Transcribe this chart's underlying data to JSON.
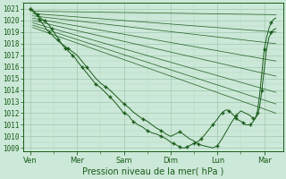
{
  "xlabel": "Pression niveau de la mer( hPa )",
  "yticks": [
    1009,
    1010,
    1011,
    1012,
    1013,
    1014,
    1015,
    1016,
    1017,
    1018,
    1019,
    1020,
    1021
  ],
  "xtick_labels": [
    "Ven",
    "Mer",
    "Sam",
    "Dim",
    "Lun",
    "Mar"
  ],
  "xtick_positions": [
    0,
    1,
    2,
    3,
    4,
    5
  ],
  "ylim": [
    1008.7,
    1021.5
  ],
  "xlim": [
    -0.15,
    5.4
  ],
  "bg_color": "#cce8d8",
  "grid_major_color": "#a0c8b0",
  "grid_minor_color": "#b8d8c4",
  "line_color": "#1a5c1a",
  "figsize": [
    3.2,
    2.0
  ],
  "dpi": 100,
  "fan_starts": [
    [
      0.05,
      1020.8
    ],
    [
      0.05,
      1020.6
    ],
    [
      0.05,
      1020.4
    ],
    [
      0.05,
      1020.2
    ],
    [
      0.05,
      1020.0
    ],
    [
      0.05,
      1019.8
    ],
    [
      0.05,
      1019.6
    ],
    [
      0.05,
      1019.4
    ]
  ],
  "fan_ends": [
    [
      5.25,
      1020.5
    ],
    [
      5.25,
      1019.0
    ],
    [
      5.25,
      1018.0
    ],
    [
      5.25,
      1016.5
    ],
    [
      5.25,
      1015.2
    ],
    [
      5.25,
      1013.8
    ],
    [
      5.25,
      1012.8
    ],
    [
      5.25,
      1012.0
    ]
  ],
  "obs_x": [
    0.0,
    0.05,
    0.1,
    0.15,
    0.2,
    0.25,
    0.3,
    0.35,
    0.4,
    0.45,
    0.5,
    0.55,
    0.6,
    0.65,
    0.7,
    0.75,
    0.8,
    0.85,
    0.9,
    0.95,
    1.0,
    1.1,
    1.2,
    1.3,
    1.4,
    1.5,
    1.6,
    1.7,
    1.8,
    1.9,
    2.0,
    2.1,
    2.15,
    2.2,
    2.3,
    2.4,
    2.5,
    2.6,
    2.7,
    2.8,
    2.9,
    3.0,
    3.05,
    3.1,
    3.15,
    3.2,
    3.25,
    3.3,
    3.35,
    3.4,
    3.45,
    3.5,
    3.55,
    3.6,
    3.65,
    3.7,
    3.8,
    3.9,
    4.0,
    4.05,
    4.1,
    4.15,
    4.2,
    4.25,
    4.3,
    4.35,
    4.4,
    4.45,
    4.5,
    4.55,
    4.6,
    4.65,
    4.7,
    4.75,
    4.8,
    4.85,
    4.9,
    4.95,
    5.0,
    5.05,
    5.1,
    5.15,
    5.2,
    5.25
  ],
  "obs_y": [
    1021.0,
    1020.9,
    1020.7,
    1020.5,
    1020.3,
    1020.1,
    1020.0,
    1019.8,
    1019.6,
    1019.3,
    1019.0,
    1018.7,
    1018.4,
    1018.1,
    1017.8,
    1017.6,
    1017.4,
    1017.2,
    1017.0,
    1016.8,
    1016.5,
    1016.0,
    1015.5,
    1015.0,
    1014.5,
    1014.2,
    1013.8,
    1013.4,
    1013.0,
    1012.5,
    1012.0,
    1011.8,
    1011.5,
    1011.3,
    1011.0,
    1010.8,
    1010.5,
    1010.3,
    1010.2,
    1010.0,
    1009.8,
    1009.5,
    1009.4,
    1009.3,
    1009.2,
    1009.1,
    1009.0,
    1009.0,
    1009.1,
    1009.2,
    1009.3,
    1009.4,
    1009.5,
    1009.6,
    1009.8,
    1010.0,
    1010.5,
    1011.0,
    1011.5,
    1011.8,
    1012.0,
    1012.2,
    1012.3,
    1012.2,
    1012.0,
    1011.8,
    1011.6,
    1011.4,
    1011.3,
    1011.2,
    1011.0,
    1011.0,
    1011.0,
    1011.2,
    1011.5,
    1012.0,
    1013.5,
    1015.5,
    1017.5,
    1018.5,
    1019.3,
    1019.8,
    1020.1,
    1020.2
  ],
  "obs2_x": [
    0.0,
    0.05,
    0.1,
    0.15,
    0.2,
    0.25,
    0.3,
    0.35,
    0.4,
    0.5,
    0.6,
    0.7,
    0.8,
    0.9,
    1.0,
    1.1,
    1.2,
    1.3,
    1.4,
    1.5,
    1.6,
    1.7,
    1.8,
    1.9,
    2.0,
    2.1,
    2.2,
    2.3,
    2.4,
    2.5,
    2.6,
    2.7,
    2.8,
    2.9,
    3.0,
    3.1,
    3.2,
    3.3,
    3.4,
    3.5,
    3.6,
    3.7,
    3.8,
    3.9,
    4.0,
    4.1,
    4.2,
    4.3,
    4.4,
    4.5,
    4.6,
    4.7,
    4.75,
    4.8,
    4.85,
    4.9,
    4.95,
    5.0,
    5.05,
    5.1,
    5.15,
    5.2,
    5.25
  ],
  "obs2_y": [
    1021.0,
    1020.8,
    1020.6,
    1020.4,
    1020.1,
    1019.8,
    1019.5,
    1019.2,
    1019.0,
    1018.6,
    1018.2,
    1017.9,
    1017.6,
    1017.3,
    1017.0,
    1016.5,
    1016.0,
    1015.5,
    1015.0,
    1014.6,
    1014.3,
    1014.0,
    1013.6,
    1013.2,
    1012.8,
    1012.5,
    1012.1,
    1011.8,
    1011.5,
    1011.3,
    1011.0,
    1010.7,
    1010.5,
    1010.2,
    1010.0,
    1010.2,
    1010.4,
    1010.1,
    1009.8,
    1009.6,
    1009.3,
    1009.2,
    1009.1,
    1009.0,
    1009.2,
    1009.8,
    1010.5,
    1011.2,
    1011.8,
    1012.2,
    1012.0,
    1011.8,
    1011.6,
    1011.5,
    1011.8,
    1012.5,
    1014.0,
    1015.8,
    1017.5,
    1018.5,
    1019.0,
    1019.2,
    1019.3
  ]
}
